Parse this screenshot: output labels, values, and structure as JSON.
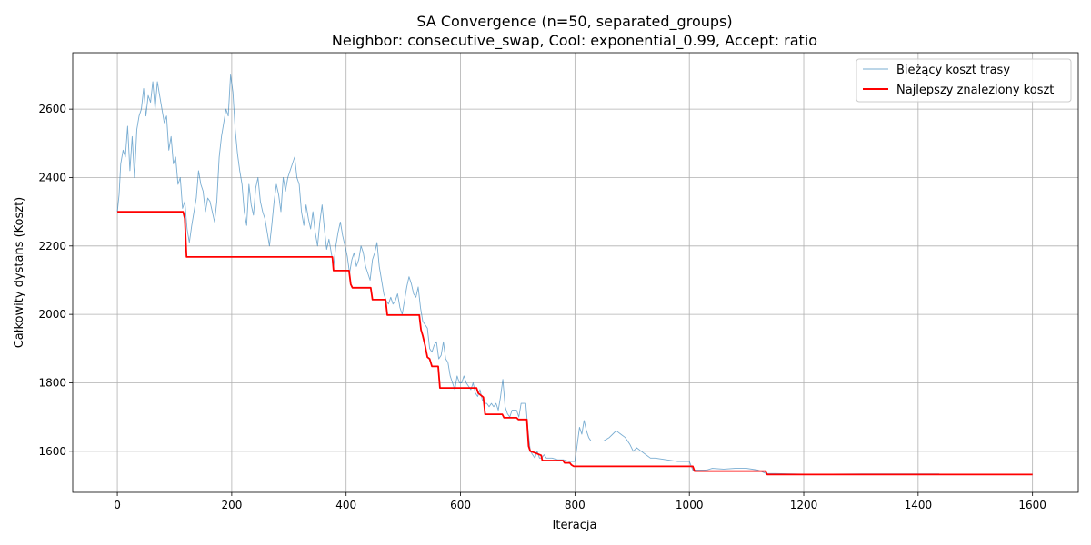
{
  "chart_data": {
    "type": "line",
    "title_line1": "SA Convergence (n=50, separated_groups)",
    "title_line2": "Neighbor: consecutive_swap, Cool: exponential_0.99, Accept: ratio",
    "xlabel": "Iteracja",
    "ylabel": "Całkowity dystans (Koszt)",
    "xlim": [
      -78,
      1680
    ],
    "ylim": [
      1480,
      2765
    ],
    "xticks": [
      0,
      200,
      400,
      600,
      800,
      1000,
      1200,
      1400,
      1600
    ],
    "yticks": [
      1600,
      1800,
      2000,
      2200,
      2400,
      2600
    ],
    "grid": true,
    "legend_position": "upper-right",
    "series": [
      {
        "name": "Bieżący koszt trasy",
        "color": "#1f77b4",
        "points": [
          [
            0,
            2300
          ],
          [
            3,
            2350
          ],
          [
            6,
            2440
          ],
          [
            10,
            2480
          ],
          [
            14,
            2460
          ],
          [
            18,
            2550
          ],
          [
            22,
            2420
          ],
          [
            26,
            2520
          ],
          [
            30,
            2400
          ],
          [
            34,
            2540
          ],
          [
            38,
            2580
          ],
          [
            42,
            2600
          ],
          [
            46,
            2660
          ],
          [
            50,
            2580
          ],
          [
            54,
            2640
          ],
          [
            58,
            2620
          ],
          [
            62,
            2680
          ],
          [
            66,
            2600
          ],
          [
            70,
            2680
          ],
          [
            74,
            2640
          ],
          [
            78,
            2600
          ],
          [
            82,
            2560
          ],
          [
            86,
            2580
          ],
          [
            90,
            2480
          ],
          [
            94,
            2520
          ],
          [
            98,
            2440
          ],
          [
            102,
            2460
          ],
          [
            106,
            2380
          ],
          [
            110,
            2400
          ],
          [
            114,
            2310
          ],
          [
            118,
            2330
          ],
          [
            122,
            2250
          ],
          [
            126,
            2210
          ],
          [
            130,
            2260
          ],
          [
            134,
            2300
          ],
          [
            138,
            2340
          ],
          [
            142,
            2420
          ],
          [
            146,
            2380
          ],
          [
            150,
            2360
          ],
          [
            154,
            2300
          ],
          [
            158,
            2340
          ],
          [
            162,
            2330
          ],
          [
            166,
            2300
          ],
          [
            170,
            2270
          ],
          [
            174,
            2330
          ],
          [
            178,
            2460
          ],
          [
            182,
            2520
          ],
          [
            186,
            2560
          ],
          [
            190,
            2600
          ],
          [
            194,
            2580
          ],
          [
            198,
            2700
          ],
          [
            202,
            2650
          ],
          [
            206,
            2540
          ],
          [
            210,
            2470
          ],
          [
            214,
            2420
          ],
          [
            218,
            2380
          ],
          [
            222,
            2300
          ],
          [
            226,
            2260
          ],
          [
            230,
            2380
          ],
          [
            234,
            2320
          ],
          [
            238,
            2290
          ],
          [
            242,
            2370
          ],
          [
            246,
            2400
          ],
          [
            250,
            2330
          ],
          [
            254,
            2300
          ],
          [
            258,
            2280
          ],
          [
            262,
            2240
          ],
          [
            266,
            2200
          ],
          [
            270,
            2260
          ],
          [
            274,
            2330
          ],
          [
            278,
            2380
          ],
          [
            282,
            2350
          ],
          [
            286,
            2300
          ],
          [
            290,
            2400
          ],
          [
            294,
            2360
          ],
          [
            298,
            2400
          ],
          [
            302,
            2420
          ],
          [
            306,
            2440
          ],
          [
            310,
            2460
          ],
          [
            314,
            2400
          ],
          [
            318,
            2380
          ],
          [
            322,
            2300
          ],
          [
            326,
            2260
          ],
          [
            330,
            2320
          ],
          [
            334,
            2280
          ],
          [
            338,
            2250
          ],
          [
            342,
            2300
          ],
          [
            346,
            2240
          ],
          [
            350,
            2200
          ],
          [
            354,
            2270
          ],
          [
            358,
            2320
          ],
          [
            362,
            2250
          ],
          [
            366,
            2190
          ],
          [
            370,
            2220
          ],
          [
            374,
            2180
          ],
          [
            378,
            2140
          ],
          [
            382,
            2200
          ],
          [
            386,
            2240
          ],
          [
            390,
            2270
          ],
          [
            394,
            2230
          ],
          [
            398,
            2200
          ],
          [
            402,
            2170
          ],
          [
            406,
            2120
          ],
          [
            410,
            2160
          ],
          [
            414,
            2180
          ],
          [
            418,
            2140
          ],
          [
            422,
            2160
          ],
          [
            426,
            2200
          ],
          [
            430,
            2180
          ],
          [
            434,
            2140
          ],
          [
            438,
            2120
          ],
          [
            442,
            2100
          ],
          [
            446,
            2160
          ],
          [
            450,
            2180
          ],
          [
            454,
            2210
          ],
          [
            458,
            2140
          ],
          [
            462,
            2100
          ],
          [
            466,
            2060
          ],
          [
            470,
            2040
          ],
          [
            474,
            2030
          ],
          [
            478,
            2050
          ],
          [
            482,
            2030
          ],
          [
            486,
            2040
          ],
          [
            490,
            2060
          ],
          [
            494,
            2020
          ],
          [
            498,
            2000
          ],
          [
            502,
            2040
          ],
          [
            506,
            2080
          ],
          [
            510,
            2110
          ],
          [
            514,
            2090
          ],
          [
            518,
            2060
          ],
          [
            522,
            2050
          ],
          [
            526,
            2080
          ],
          [
            530,
            2020
          ],
          [
            534,
            1980
          ],
          [
            538,
            1970
          ],
          [
            542,
            1960
          ],
          [
            546,
            1900
          ],
          [
            550,
            1890
          ],
          [
            554,
            1910
          ],
          [
            558,
            1920
          ],
          [
            562,
            1870
          ],
          [
            566,
            1880
          ],
          [
            570,
            1920
          ],
          [
            574,
            1870
          ],
          [
            578,
            1860
          ],
          [
            582,
            1820
          ],
          [
            586,
            1800
          ],
          [
            590,
            1780
          ],
          [
            594,
            1820
          ],
          [
            598,
            1800
          ],
          [
            602,
            1800
          ],
          [
            606,
            1820
          ],
          [
            610,
            1800
          ],
          [
            614,
            1790
          ],
          [
            618,
            1780
          ],
          [
            622,
            1800
          ],
          [
            626,
            1770
          ],
          [
            630,
            1760
          ],
          [
            634,
            1780
          ],
          [
            638,
            1750
          ],
          [
            642,
            1740
          ],
          [
            646,
            1740
          ],
          [
            650,
            1730
          ],
          [
            654,
            1740
          ],
          [
            658,
            1730
          ],
          [
            662,
            1740
          ],
          [
            666,
            1720
          ],
          [
            670,
            1760
          ],
          [
            674,
            1810
          ],
          [
            678,
            1730
          ],
          [
            682,
            1710
          ],
          [
            686,
            1700
          ],
          [
            690,
            1720
          ],
          [
            694,
            1720
          ],
          [
            698,
            1720
          ],
          [
            702,
            1700
          ],
          [
            706,
            1740
          ],
          [
            710,
            1740
          ],
          [
            714,
            1740
          ],
          [
            718,
            1660
          ],
          [
            722,
            1600
          ],
          [
            726,
            1590
          ],
          [
            730,
            1580
          ],
          [
            734,
            1600
          ],
          [
            738,
            1580
          ],
          [
            742,
            1580
          ],
          [
            746,
            1590
          ],
          [
            750,
            1580
          ],
          [
            760,
            1580
          ],
          [
            770,
            1575
          ],
          [
            780,
            1575
          ],
          [
            790,
            1570
          ],
          [
            800,
            1570
          ],
          [
            804,
            1620
          ],
          [
            808,
            1670
          ],
          [
            812,
            1650
          ],
          [
            816,
            1690
          ],
          [
            820,
            1660
          ],
          [
            824,
            1640
          ],
          [
            828,
            1630
          ],
          [
            840,
            1630
          ],
          [
            850,
            1630
          ],
          [
            860,
            1640
          ],
          [
            866,
            1650
          ],
          [
            872,
            1660
          ],
          [
            880,
            1650
          ],
          [
            888,
            1640
          ],
          [
            896,
            1620
          ],
          [
            902,
            1600
          ],
          [
            908,
            1610
          ],
          [
            916,
            1600
          ],
          [
            924,
            1590
          ],
          [
            932,
            1580
          ],
          [
            940,
            1580
          ],
          [
            960,
            1575
          ],
          [
            980,
            1570
          ],
          [
            1000,
            1570
          ],
          [
            1006,
            1545
          ],
          [
            1020,
            1545
          ],
          [
            1030,
            1545
          ],
          [
            1040,
            1550
          ],
          [
            1060,
            1548
          ],
          [
            1080,
            1550
          ],
          [
            1100,
            1550
          ],
          [
            1120,
            1545
          ],
          [
            1134,
            1535
          ],
          [
            1150,
            1535
          ],
          [
            1200,
            1533
          ],
          [
            1250,
            1533
          ],
          [
            1300,
            1534
          ],
          [
            1350,
            1534
          ],
          [
            1400,
            1534
          ],
          [
            1437,
            1534
          ]
        ]
      },
      {
        "name": "Najlepszy znaleziony koszt",
        "color": "#ff0000",
        "points": [
          [
            0,
            2300
          ],
          [
            115,
            2300
          ],
          [
            118,
            2280
          ],
          [
            121,
            2168
          ],
          [
            376,
            2168
          ],
          [
            378,
            2128
          ],
          [
            405,
            2128
          ],
          [
            408,
            2088
          ],
          [
            411,
            2078
          ],
          [
            443,
            2078
          ],
          [
            446,
            2043
          ],
          [
            469,
            2043
          ],
          [
            472,
            1998
          ],
          [
            528,
            1998
          ],
          [
            531,
            1955
          ],
          [
            534,
            1938
          ],
          [
            538,
            1910
          ],
          [
            542,
            1875
          ],
          [
            546,
            1870
          ],
          [
            550,
            1848
          ],
          [
            561,
            1848
          ],
          [
            564,
            1785
          ],
          [
            628,
            1785
          ],
          [
            631,
            1770
          ],
          [
            640,
            1758
          ],
          [
            643,
            1708
          ],
          [
            673,
            1708
          ],
          [
            676,
            1698
          ],
          [
            698,
            1698
          ],
          [
            701,
            1693
          ],
          [
            716,
            1693
          ],
          [
            719,
            1615
          ],
          [
            722,
            1600
          ],
          [
            731,
            1595
          ],
          [
            741,
            1588
          ],
          [
            743,
            1573
          ],
          [
            779,
            1573
          ],
          [
            782,
            1566
          ],
          [
            791,
            1566
          ],
          [
            794,
            1560
          ],
          [
            798,
            1556
          ],
          [
            1006,
            1556
          ],
          [
            1009,
            1542
          ],
          [
            1133,
            1542
          ],
          [
            1136,
            1532
          ],
          [
            1600,
            1532
          ]
        ]
      }
    ]
  }
}
